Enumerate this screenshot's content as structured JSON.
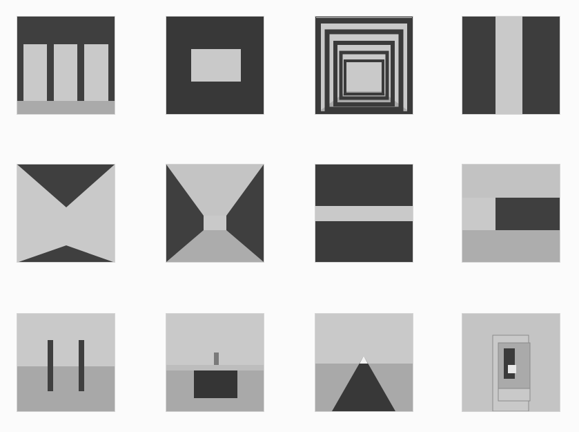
{
  "palette": {
    "background": "#fbfbfb",
    "light_gray": "#c9c9c9",
    "mid_gray": "#a9a9a9",
    "dark_gray": "#3f3f3f",
    "darker_gray": "#363636"
  }
}
